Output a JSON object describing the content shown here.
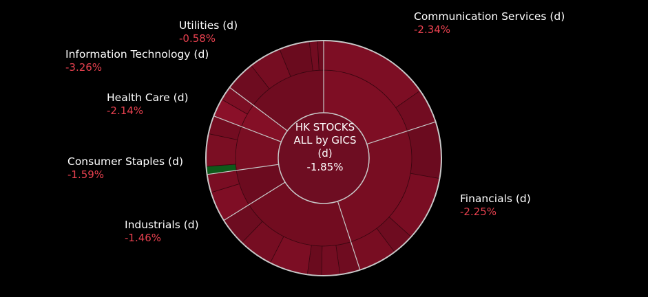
{
  "chart_data": {
    "type": "sunburst",
    "center": {
      "line1": "HK STOCKS",
      "line2": "ALL by GICS",
      "line3": "(d)",
      "value": "-1.85%"
    },
    "colors": {
      "background": "#000000",
      "negative_text": "#e8414f",
      "ring_stroke": "#c9c9c9",
      "center_fill": "#6e0d22",
      "gain_green": "#0e5a1a"
    },
    "sectors": [
      {
        "name": "Communication Services (d)",
        "value": "-2.34%",
        "change": -2.34
      },
      {
        "name": "Financials (d)",
        "value": "-2.25%",
        "change": -2.25
      },
      {
        "name": "Industrials (d)",
        "value": "-1.46%",
        "change": -1.46
      },
      {
        "name": "Consumer Staples (d)",
        "value": "-1.59%",
        "change": -1.59
      },
      {
        "name": "Health Care (d)",
        "value": "-2.14%",
        "change": -2.14
      },
      {
        "name": "Information Technology (d)",
        "value": "-3.26%",
        "change": -3.26
      },
      {
        "name": "Utilities (d)",
        "value": "-0.58%",
        "change": -0.58
      }
    ]
  }
}
